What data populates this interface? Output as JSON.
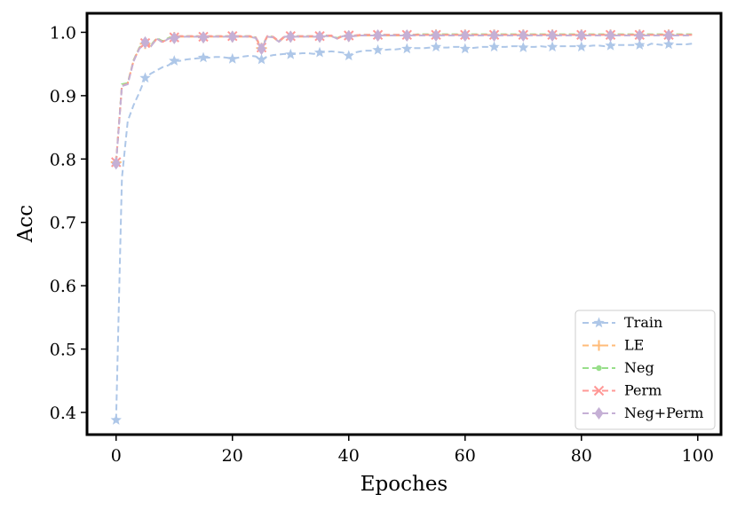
{
  "chart_data": {
    "type": "line",
    "xlabel": "Epoches",
    "ylabel": "Acc",
    "xlim": [
      -5,
      104
    ],
    "ylim": [
      0.365,
      1.03
    ],
    "xticks": [
      0,
      20,
      40,
      60,
      80,
      100
    ],
    "yticks": [
      0.4,
      0.5,
      0.6,
      0.7,
      0.8,
      0.9,
      1.0
    ],
    "xtick_labels": [
      "0",
      "20",
      "40",
      "60",
      "80",
      "100"
    ],
    "ytick_labels": [
      "0.4",
      "0.5",
      "0.6",
      "0.7",
      "0.8",
      "0.9",
      "1.0"
    ],
    "grid": false,
    "legend_position": "lower-right",
    "series": [
      {
        "name": "Train",
        "color": "#aec7e8",
        "marker": "star",
        "x": [
          0,
          1,
          2,
          3,
          4,
          5,
          6,
          7,
          8,
          9,
          10,
          11,
          12,
          13,
          14,
          15,
          16,
          17,
          18,
          19,
          20,
          21,
          22,
          23,
          24,
          25,
          26,
          27,
          28,
          29,
          30,
          31,
          32,
          33,
          34,
          35,
          36,
          37,
          38,
          39,
          40,
          41,
          42,
          43,
          44,
          45,
          46,
          47,
          48,
          49,
          50,
          51,
          52,
          53,
          54,
          55,
          56,
          57,
          58,
          59,
          60,
          61,
          62,
          63,
          64,
          65,
          66,
          67,
          68,
          69,
          70,
          71,
          72,
          73,
          74,
          75,
          76,
          77,
          78,
          79,
          80,
          81,
          82,
          83,
          84,
          85,
          86,
          87,
          88,
          89,
          90,
          91,
          92,
          93,
          94,
          95,
          96,
          97,
          98,
          99
        ],
        "y": [
          0.388,
          0.77,
          0.86,
          0.885,
          0.905,
          0.928,
          0.935,
          0.94,
          0.945,
          0.948,
          0.955,
          0.955,
          0.957,
          0.958,
          0.959,
          0.96,
          0.96,
          0.961,
          0.961,
          0.96,
          0.958,
          0.96,
          0.962,
          0.963,
          0.962,
          0.957,
          0.962,
          0.964,
          0.965,
          0.966,
          0.965,
          0.966,
          0.967,
          0.967,
          0.966,
          0.968,
          0.969,
          0.97,
          0.969,
          0.968,
          0.963,
          0.968,
          0.97,
          0.971,
          0.971,
          0.972,
          0.972,
          0.973,
          0.973,
          0.974,
          0.974,
          0.975,
          0.975,
          0.975,
          0.976,
          0.977,
          0.976,
          0.976,
          0.977,
          0.977,
          0.974,
          0.975,
          0.976,
          0.977,
          0.977,
          0.977,
          0.977,
          0.977,
          0.978,
          0.978,
          0.976,
          0.977,
          0.977,
          0.978,
          0.977,
          0.977,
          0.978,
          0.978,
          0.978,
          0.978,
          0.977,
          0.978,
          0.979,
          0.979,
          0.978,
          0.979,
          0.98,
          0.98,
          0.98,
          0.98,
          0.98,
          0.978,
          0.982,
          0.981,
          0.98,
          0.981,
          0.981,
          0.981,
          0.981,
          0.982
        ],
        "markevery": 5
      },
      {
        "name": "LE",
        "color": "#ffbb78",
        "marker": "plus",
        "x": [
          0,
          1,
          2,
          3,
          4,
          5,
          6,
          7,
          8,
          9,
          10,
          11,
          12,
          13,
          14,
          15,
          16,
          17,
          18,
          19,
          20,
          21,
          22,
          23,
          24,
          25,
          26,
          27,
          28,
          29,
          30,
          31,
          32,
          33,
          34,
          35,
          36,
          37,
          38,
          39,
          40,
          41,
          42,
          43,
          44,
          45,
          46,
          47,
          48,
          49,
          50,
          51,
          52,
          53,
          54,
          55,
          56,
          57,
          58,
          59,
          60,
          61,
          62,
          63,
          64,
          65,
          66,
          67,
          68,
          69,
          70,
          71,
          72,
          73,
          74,
          75,
          76,
          77,
          78,
          79,
          80,
          81,
          82,
          83,
          84,
          85,
          86,
          87,
          88,
          89,
          90,
          91,
          92,
          93,
          94,
          95,
          96,
          97,
          98,
          99
        ],
        "y": [
          0.795,
          0.915,
          0.92,
          0.955,
          0.975,
          0.982,
          0.978,
          0.99,
          0.985,
          0.99,
          0.992,
          0.993,
          0.993,
          0.993,
          0.993,
          0.992,
          0.993,
          0.993,
          0.993,
          0.993,
          0.993,
          0.993,
          0.993,
          0.993,
          0.991,
          0.975,
          0.993,
          0.992,
          0.985,
          0.993,
          0.993,
          0.993,
          0.993,
          0.993,
          0.993,
          0.993,
          0.994,
          0.994,
          0.99,
          0.994,
          0.994,
          0.994,
          0.995,
          0.995,
          0.995,
          0.995,
          0.995,
          0.995,
          0.995,
          0.995,
          0.995,
          0.995,
          0.996,
          0.996,
          0.996,
          0.996,
          0.996,
          0.996,
          0.996,
          0.996,
          0.996,
          0.996,
          0.996,
          0.996,
          0.996,
          0.996,
          0.996,
          0.996,
          0.996,
          0.996,
          0.996,
          0.996,
          0.996,
          0.996,
          0.996,
          0.996,
          0.996,
          0.996,
          0.996,
          0.996,
          0.996,
          0.996,
          0.996,
          0.996,
          0.996,
          0.996,
          0.996,
          0.996,
          0.996,
          0.996,
          0.996,
          0.996,
          0.996,
          0.996,
          0.996,
          0.996,
          0.996,
          0.996,
          0.996,
          0.996
        ],
        "markevery": 5
      },
      {
        "name": "Neg",
        "color": "#98df8a",
        "marker": "dot",
        "x": [
          0,
          1,
          2,
          3,
          4,
          5,
          6,
          7,
          8,
          9,
          10,
          11,
          12,
          13,
          14,
          15,
          16,
          17,
          18,
          19,
          20,
          21,
          22,
          23,
          24,
          25,
          26,
          27,
          28,
          29,
          30,
          31,
          32,
          33,
          34,
          35,
          36,
          37,
          38,
          39,
          40,
          41,
          42,
          43,
          44,
          45,
          46,
          47,
          48,
          49,
          50,
          51,
          52,
          53,
          54,
          55,
          56,
          57,
          58,
          59,
          60,
          61,
          62,
          63,
          64,
          65,
          66,
          67,
          68,
          69,
          70,
          71,
          72,
          73,
          74,
          75,
          76,
          77,
          78,
          79,
          80,
          81,
          82,
          83,
          84,
          85,
          86,
          87,
          88,
          89,
          90,
          91,
          92,
          93,
          94,
          95,
          96,
          97,
          98,
          99
        ],
        "y": [
          0.795,
          0.918,
          0.92,
          0.956,
          0.976,
          0.984,
          0.98,
          0.991,
          0.986,
          0.991,
          0.993,
          0.994,
          0.994,
          0.994,
          0.994,
          0.993,
          0.994,
          0.994,
          0.994,
          0.994,
          0.994,
          0.994,
          0.994,
          0.994,
          0.992,
          0.976,
          0.994,
          0.993,
          0.986,
          0.994,
          0.994,
          0.994,
          0.994,
          0.994,
          0.994,
          0.994,
          0.995,
          0.995,
          0.991,
          0.995,
          0.995,
          0.995,
          0.996,
          0.996,
          0.996,
          0.996,
          0.996,
          0.996,
          0.996,
          0.996,
          0.996,
          0.996,
          0.997,
          0.997,
          0.997,
          0.997,
          0.997,
          0.997,
          0.997,
          0.997,
          0.997,
          0.997,
          0.997,
          0.997,
          0.997,
          0.997,
          0.997,
          0.997,
          0.997,
          0.997,
          0.997,
          0.997,
          0.997,
          0.997,
          0.997,
          0.997,
          0.997,
          0.997,
          0.997,
          0.997,
          0.997,
          0.997,
          0.997,
          0.997,
          0.997,
          0.997,
          0.997,
          0.997,
          0.997,
          0.997,
          0.997,
          0.997,
          0.997,
          0.997,
          0.997,
          0.997,
          0.997,
          0.997,
          0.997,
          0.997
        ],
        "markevery": 5
      },
      {
        "name": "Perm",
        "color": "#ff9896",
        "marker": "x",
        "x": [
          0,
          1,
          2,
          3,
          4,
          5,
          6,
          7,
          8,
          9,
          10,
          11,
          12,
          13,
          14,
          15,
          16,
          17,
          18,
          19,
          20,
          21,
          22,
          23,
          24,
          25,
          26,
          27,
          28,
          29,
          30,
          31,
          32,
          33,
          34,
          35,
          36,
          37,
          38,
          39,
          40,
          41,
          42,
          43,
          44,
          45,
          46,
          47,
          48,
          49,
          50,
          51,
          52,
          53,
          54,
          55,
          56,
          57,
          58,
          59,
          60,
          61,
          62,
          63,
          64,
          65,
          66,
          67,
          68,
          69,
          70,
          71,
          72,
          73,
          74,
          75,
          76,
          77,
          78,
          79,
          80,
          81,
          82,
          83,
          84,
          85,
          86,
          87,
          88,
          89,
          90,
          91,
          92,
          93,
          94,
          95,
          96,
          97,
          98,
          99
        ],
        "y": [
          0.795,
          0.916,
          0.919,
          0.955,
          0.975,
          0.983,
          0.979,
          0.99,
          0.985,
          0.99,
          0.992,
          0.994,
          0.994,
          0.994,
          0.994,
          0.993,
          0.994,
          0.994,
          0.994,
          0.994,
          0.994,
          0.994,
          0.994,
          0.994,
          0.992,
          0.976,
          0.994,
          0.993,
          0.986,
          0.994,
          0.994,
          0.994,
          0.994,
          0.994,
          0.994,
          0.994,
          0.995,
          0.995,
          0.99,
          0.995,
          0.995,
          0.995,
          0.996,
          0.996,
          0.996,
          0.996,
          0.996,
          0.996,
          0.996,
          0.996,
          0.996,
          0.996,
          0.996,
          0.996,
          0.996,
          0.996,
          0.996,
          0.996,
          0.996,
          0.996,
          0.996,
          0.996,
          0.996,
          0.996,
          0.996,
          0.996,
          0.996,
          0.996,
          0.996,
          0.996,
          0.996,
          0.996,
          0.996,
          0.996,
          0.996,
          0.996,
          0.996,
          0.996,
          0.996,
          0.996,
          0.996,
          0.996,
          0.996,
          0.996,
          0.996,
          0.996,
          0.996,
          0.996,
          0.996,
          0.996,
          0.996,
          0.996,
          0.996,
          0.996,
          0.996,
          0.996,
          0.996,
          0.996,
          0.996,
          0.996
        ],
        "markevery": 5
      },
      {
        "name": "Neg+Perm",
        "color": "#c5b0d5",
        "marker": "diamond",
        "x": [
          0,
          1,
          2,
          3,
          4,
          5,
          6,
          7,
          8,
          9,
          10,
          11,
          12,
          13,
          14,
          15,
          16,
          17,
          18,
          19,
          20,
          21,
          22,
          23,
          24,
          25,
          26,
          27,
          28,
          29,
          30,
          31,
          32,
          33,
          34,
          35,
          36,
          37,
          38,
          39,
          40,
          41,
          42,
          43,
          44,
          45,
          46,
          47,
          48,
          49,
          50,
          51,
          52,
          53,
          54,
          55,
          56,
          57,
          58,
          59,
          60,
          61,
          62,
          63,
          64,
          65,
          66,
          67,
          68,
          69,
          70,
          71,
          72,
          73,
          74,
          75,
          76,
          77,
          78,
          79,
          80,
          81,
          82,
          83,
          84,
          85,
          86,
          87,
          88,
          89,
          90,
          91,
          92,
          93,
          94,
          95,
          96,
          97,
          98,
          99
        ],
        "y": [
          0.793,
          0.915,
          0.918,
          0.954,
          0.974,
          0.984,
          0.978,
          0.99,
          0.984,
          0.99,
          0.991,
          0.993,
          0.993,
          0.993,
          0.993,
          0.992,
          0.993,
          0.993,
          0.993,
          0.993,
          0.993,
          0.993,
          0.993,
          0.993,
          0.991,
          0.974,
          0.993,
          0.992,
          0.985,
          0.993,
          0.993,
          0.993,
          0.993,
          0.993,
          0.993,
          0.993,
          0.994,
          0.994,
          0.99,
          0.994,
          0.994,
          0.994,
          0.995,
          0.995,
          0.995,
          0.995,
          0.995,
          0.995,
          0.995,
          0.995,
          0.995,
          0.995,
          0.995,
          0.995,
          0.995,
          0.995,
          0.995,
          0.995,
          0.995,
          0.995,
          0.995,
          0.995,
          0.995,
          0.995,
          0.995,
          0.995,
          0.995,
          0.995,
          0.995,
          0.995,
          0.995,
          0.995,
          0.995,
          0.995,
          0.995,
          0.995,
          0.995,
          0.995,
          0.995,
          0.995,
          0.995,
          0.995,
          0.995,
          0.995,
          0.995,
          0.995,
          0.995,
          0.995,
          0.995,
          0.995,
          0.995,
          0.995,
          0.995,
          0.995,
          0.995,
          0.995,
          0.995,
          0.995,
          0.995,
          0.995
        ],
        "markevery": 5
      }
    ]
  }
}
